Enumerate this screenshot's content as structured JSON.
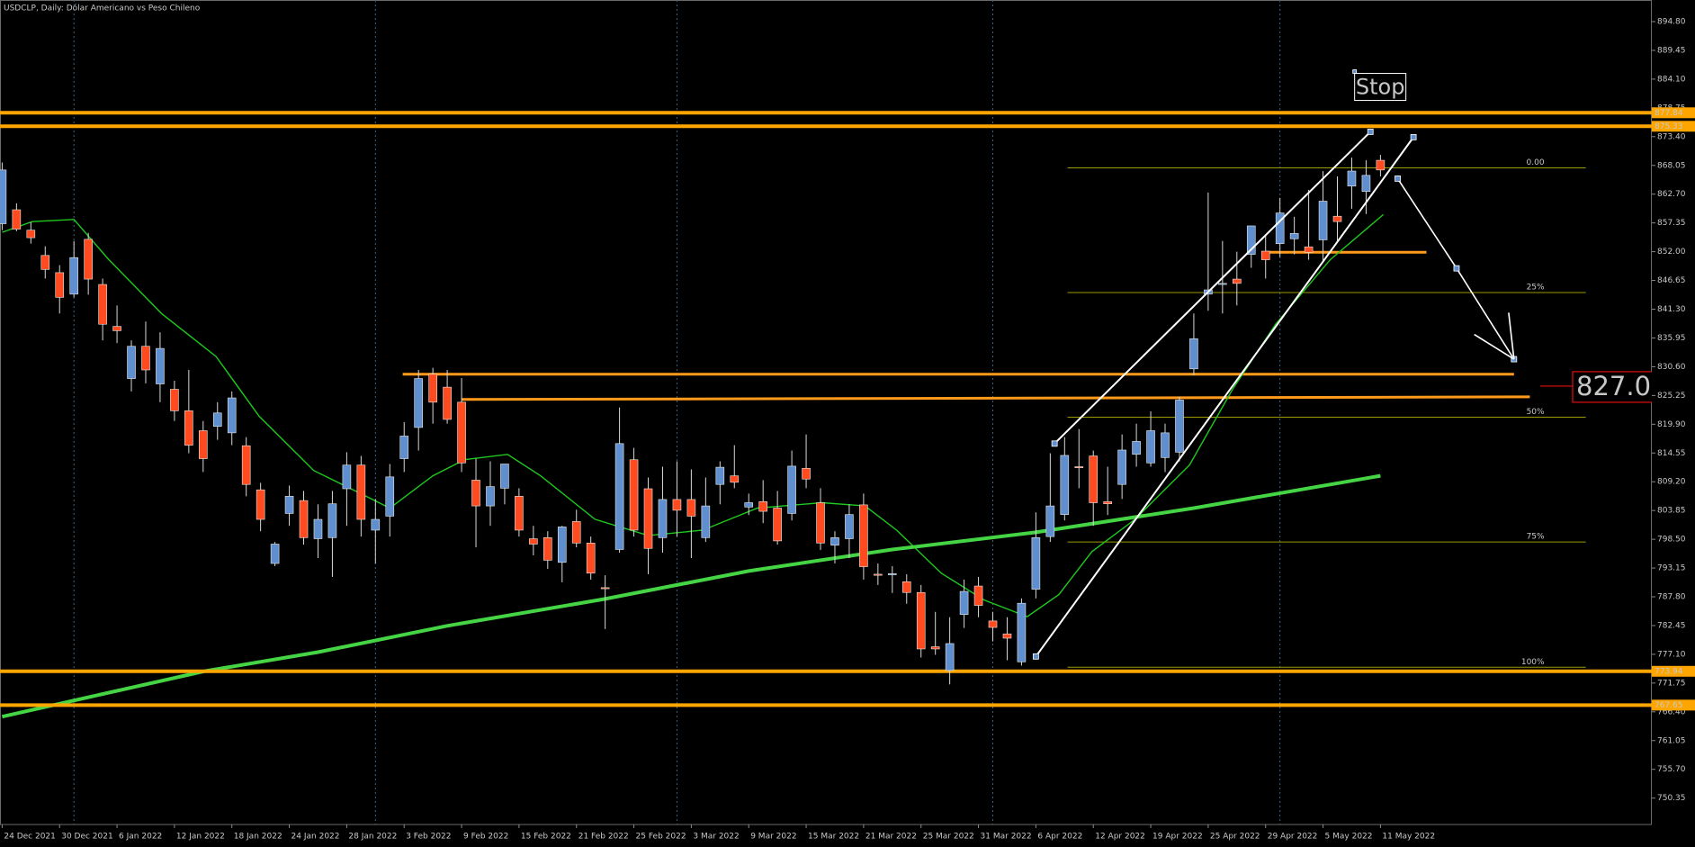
{
  "chart_data": {
    "type": "candlestick",
    "title": "USDCLP, Daily:  Dólar Americano vs Peso Chileno",
    "categories": [
      "24 Dec 2021",
      null,
      null,
      null,
      "30 Dec 2021",
      null,
      null,
      null,
      "6 Jan 2022",
      null,
      null,
      null,
      "12 Jan 2022",
      null,
      null,
      null,
      "18 Jan 2022",
      null,
      null,
      null,
      "24 Jan 2022",
      null,
      null,
      null,
      "28 Jan 2022",
      null,
      null,
      null,
      "3 Feb 2022",
      null,
      null,
      null,
      "9 Feb 2022",
      null,
      null,
      null,
      "15 Feb 2022",
      null,
      null,
      null,
      "21 Feb 2022",
      null,
      null,
      null,
      "25 Feb 2022",
      null,
      null,
      null,
      "3 Mar 2022",
      null,
      null,
      null,
      "9 Mar 2022",
      null,
      null,
      null,
      "15 Mar 2022",
      null,
      null,
      null,
      "21 Mar 2022",
      null,
      null,
      null,
      "25 Mar 2022",
      null,
      null,
      null,
      "31 Mar 2022",
      null,
      null,
      null,
      "6 Apr 2022",
      null,
      null,
      null,
      "12 Apr 2022",
      null,
      null,
      null,
      "19 Apr 2022",
      null,
      null,
      null,
      "25 Apr 2022",
      null,
      null,
      null,
      "29 Apr 2022",
      null,
      null,
      null,
      "5 May 2022",
      null,
      null,
      null,
      "11 May 2022"
    ],
    "open": [
      857.2,
      859.8,
      856,
      851.3,
      848.1,
      844.1,
      854.3,
      845.9,
      838.1,
      828.4,
      834.4,
      827.4,
      826.4,
      822.4,
      818.7,
      819.5,
      818.3,
      815.9,
      807.7,
      794,
      803.3,
      805.7,
      798.6,
      798.8,
      807.9,
      812.3,
      800.2,
      802.8,
      813.5,
      819.3,
      829.2,
      826.8,
      824,
      809.5,
      804.7,
      808,
      806.5,
      798.6,
      798.8,
      794.2,
      801.8,
      797.8,
      789.5,
      796.6,
      813.3,
      807.9,
      798.8,
      805.9,
      805.9,
      798.8,
      808.7,
      810.3,
      804.5,
      805.5,
      804.3,
      803.3,
      811.7,
      805.3,
      797.4,
      798.6,
      804.9,
      792,
      792,
      790.6,
      788.6,
      778.5,
      774.1,
      784.5,
      789.8,
      783.3,
      780.9,
      775.7,
      789.2,
      799,
      803.1,
      812,
      814,
      805.5,
      808.7,
      814.3,
      812.7,
      813.7,
      814.7,
      830.2,
      844.1,
      845.9,
      846.9,
      851.5,
      852.1,
      853.5,
      854.4,
      852.9,
      854.2,
      858.6,
      864.2,
      863.2,
      869
    ],
    "high": [
      868.6,
      861,
      857.5,
      853,
      849.5,
      854,
      855.5,
      847,
      842,
      835.5,
      839,
      837,
      828,
      830,
      820.5,
      824,
      826,
      817.5,
      809,
      798,
      808.5,
      807.5,
      805,
      807.5,
      814.7,
      814,
      806,
      812.5,
      820.3,
      830,
      830.4,
      830,
      828.5,
      813.5,
      813,
      812.5,
      808,
      801,
      800,
      801,
      804,
      799,
      791.8,
      823,
      815.5,
      810,
      812,
      813,
      811.5,
      810,
      813,
      816,
      807,
      809.5,
      807.5,
      815,
      818,
      808,
      800,
      805,
      807,
      794,
      793.5,
      792,
      790,
      785,
      784,
      791,
      791.5,
      785,
      784,
      787.5,
      803.5,
      814.5,
      817.5,
      819,
      815,
      812,
      818,
      820,
      822.3,
      820,
      825,
      840.5,
      863,
      854,
      852,
      856.8,
      855,
      862,
      858.5,
      863.5,
      867,
      866,
      869.5,
      869,
      870
    ],
    "low": [
      856,
      855.8,
      853.5,
      847,
      840.5,
      843.5,
      844,
      835.5,
      835,
      826,
      827.5,
      824,
      820.5,
      814.5,
      811,
      817,
      816,
      806.5,
      800,
      793.5,
      801,
      797.5,
      795,
      791.5,
      801,
      799,
      794,
      799,
      811,
      815,
      820,
      820,
      811,
      797,
      801,
      805,
      799,
      795.5,
      793,
      790.5,
      797,
      791,
      781.8,
      796,
      799,
      792,
      796,
      799,
      795,
      798,
      805,
      808,
      803,
      801.5,
      797.5,
      802,
      808,
      796.5,
      794,
      795,
      791,
      790,
      788.5,
      786.5,
      776.5,
      777,
      771.5,
      782,
      784,
      779.5,
      776,
      775,
      787.5,
      798,
      802,
      808,
      801,
      803,
      806,
      812,
      812,
      811,
      813,
      829,
      841,
      840.5,
      842,
      849,
      847,
      851,
      851.5,
      850.5,
      850,
      854,
      860,
      859,
      866
    ],
    "close": [
      867.2,
      856.2,
      854.6,
      848.7,
      843.5,
      850.9,
      846.9,
      838.5,
      837.3,
      834.4,
      830,
      834,
      822.4,
      816,
      813.5,
      822,
      824.8,
      808.7,
      802.2,
      797.6,
      806.5,
      798.8,
      802.2,
      805.1,
      812.3,
      802.2,
      802.2,
      810.1,
      817.7,
      828.4,
      824,
      820.8,
      812.7,
      804.7,
      808.3,
      812.5,
      800.2,
      797.6,
      794.6,
      800.8,
      797.8,
      792.2,
      789.4,
      816.3,
      800.2,
      796.8,
      805.9,
      803.9,
      802.8,
      804.7,
      811.9,
      809.1,
      805.3,
      803.7,
      798.2,
      812.1,
      809.7,
      797.8,
      798.8,
      803.1,
      793.4,
      791.9,
      792.1,
      788.6,
      778.1,
      778.1,
      779.1,
      788.8,
      786.2,
      782.1,
      780.1,
      786.6,
      798.8,
      804.7,
      814.1,
      811.9,
      805.3,
      805.1,
      815.1,
      816.7,
      818.7,
      818.3,
      824.4,
      835.8,
      844.9,
      846.1,
      846.1,
      856.8,
      850.5,
      859.2,
      855.4,
      851.9,
      861.4,
      857.6,
      867,
      866.2,
      867.2
    ],
    "up_color": "#5f8fcf",
    "down_color": "#ff4b1f",
    "xlim": [
      -0.15,
      114.9
    ],
    "ylim": [
      745.44,
      898.82
    ],
    "yticks": [
      {
        "value": 894.8,
        "label": "894.80"
      },
      889.45,
      {
        "value": 884.1,
        "label": "884.10"
      },
      878.75,
      {
        "value": 873.4,
        "label": "873.40"
      },
      868.05,
      {
        "value": 862.7,
        "label": "862.70"
      },
      857.35,
      {
        "value": 852,
        "label": "852.00"
      },
      846.65,
      {
        "value": 841.3,
        "label": "841.30"
      },
      835.95,
      {
        "value": 830.6,
        "label": "830.60"
      },
      825.25,
      {
        "value": 819.9,
        "label": "819.90"
      },
      814.55,
      {
        "value": 809.2,
        "label": "809.20"
      },
      803.85,
      {
        "value": 798.5,
        "label": "798.50"
      },
      793.15,
      {
        "value": 787.8,
        "label": "787.80"
      },
      782.45,
      {
        "value": 777.1,
        "label": "777.10"
      },
      771.75,
      {
        "value": 766.4,
        "label": "766.40"
      },
      761.05,
      {
        "value": 755.7,
        "label": "755.70"
      },
      750.35
    ],
    "xgrid": [
      5,
      26,
      47,
      69,
      89
    ],
    "moving_averages": [
      {
        "color": "#1ec81e",
        "x": [
          0,
          2.1,
          5,
          7.4,
          11.1,
          14.9,
          17.9,
          21.7,
          25.5,
          27,
          30,
          32.2,
          35.2,
          37.5,
          41.3,
          45,
          48.8,
          52.6,
          57.1,
          60.1,
          62.3,
          65.4,
          68.4,
          71.4,
          73.6,
          75.9,
          78.9,
          82.7,
          85.7,
          88.7,
          92.5,
          96.2
        ],
        "values": [
          855.6,
          857.6,
          858,
          850.6,
          840.5,
          832.5,
          821.4,
          811.3,
          806.3,
          804.3,
          810.3,
          813.3,
          814.3,
          810.3,
          802.2,
          799.2,
          800.2,
          804.3,
          805.3,
          804.7,
          800.2,
          792.2,
          787.2,
          784.1,
          788.2,
          796.2,
          802.2,
          812.3,
          826.4,
          838.5,
          850.5,
          858.9
        ]
      },
      {
        "color": "#44d444",
        "x": [
          0,
          14,
          22,
          31,
          42,
          52,
          62,
          72,
          83,
          96
        ],
        "values": [
          765.5,
          773.9,
          777.5,
          782.4,
          787.4,
          792.6,
          796.6,
          799.8,
          804.3,
          810.3
        ]
      }
    ],
    "price_levels": [
      877.84,
      875.33,
      773.94,
      767.65
    ],
    "segments": [
      {
        "x": [
          27.9,
          105.3
        ],
        "values": [
          829.2,
          829.2
        ]
      },
      {
        "x": [
          32,
          106.4
        ],
        "values": [
          824.5,
          825
        ]
      },
      {
        "x": [
          88,
          99.2
        ],
        "values": [
          851.9,
          851.9
        ]
      }
    ],
    "trendlines": [
      {
        "x": [
          72,
          98.3
        ],
        "values": [
          776.7,
          873.3
        ]
      },
      {
        "x": [
          73.3,
          95.3
        ],
        "values": [
          816.3,
          874.3
        ]
      }
    ],
    "forecast": {
      "x": [
        97.2,
        101.3,
        105.3
      ],
      "values": [
        865.6,
        848.9,
        832
      ]
    },
    "fibonacci": {
      "x": [
        74.2,
        110.3
      ],
      "labels": [
        "0.00",
        "25%",
        "50%",
        "75%",
        "100%"
      ],
      "values": [
        867.6,
        844.4,
        821.2,
        798,
        774.7
      ]
    },
    "stop": {
      "text": "Stop",
      "x": 94.2,
      "value": 885.5
    },
    "alert_level": {
      "value": 827,
      "label": "827.00"
    }
  }
}
